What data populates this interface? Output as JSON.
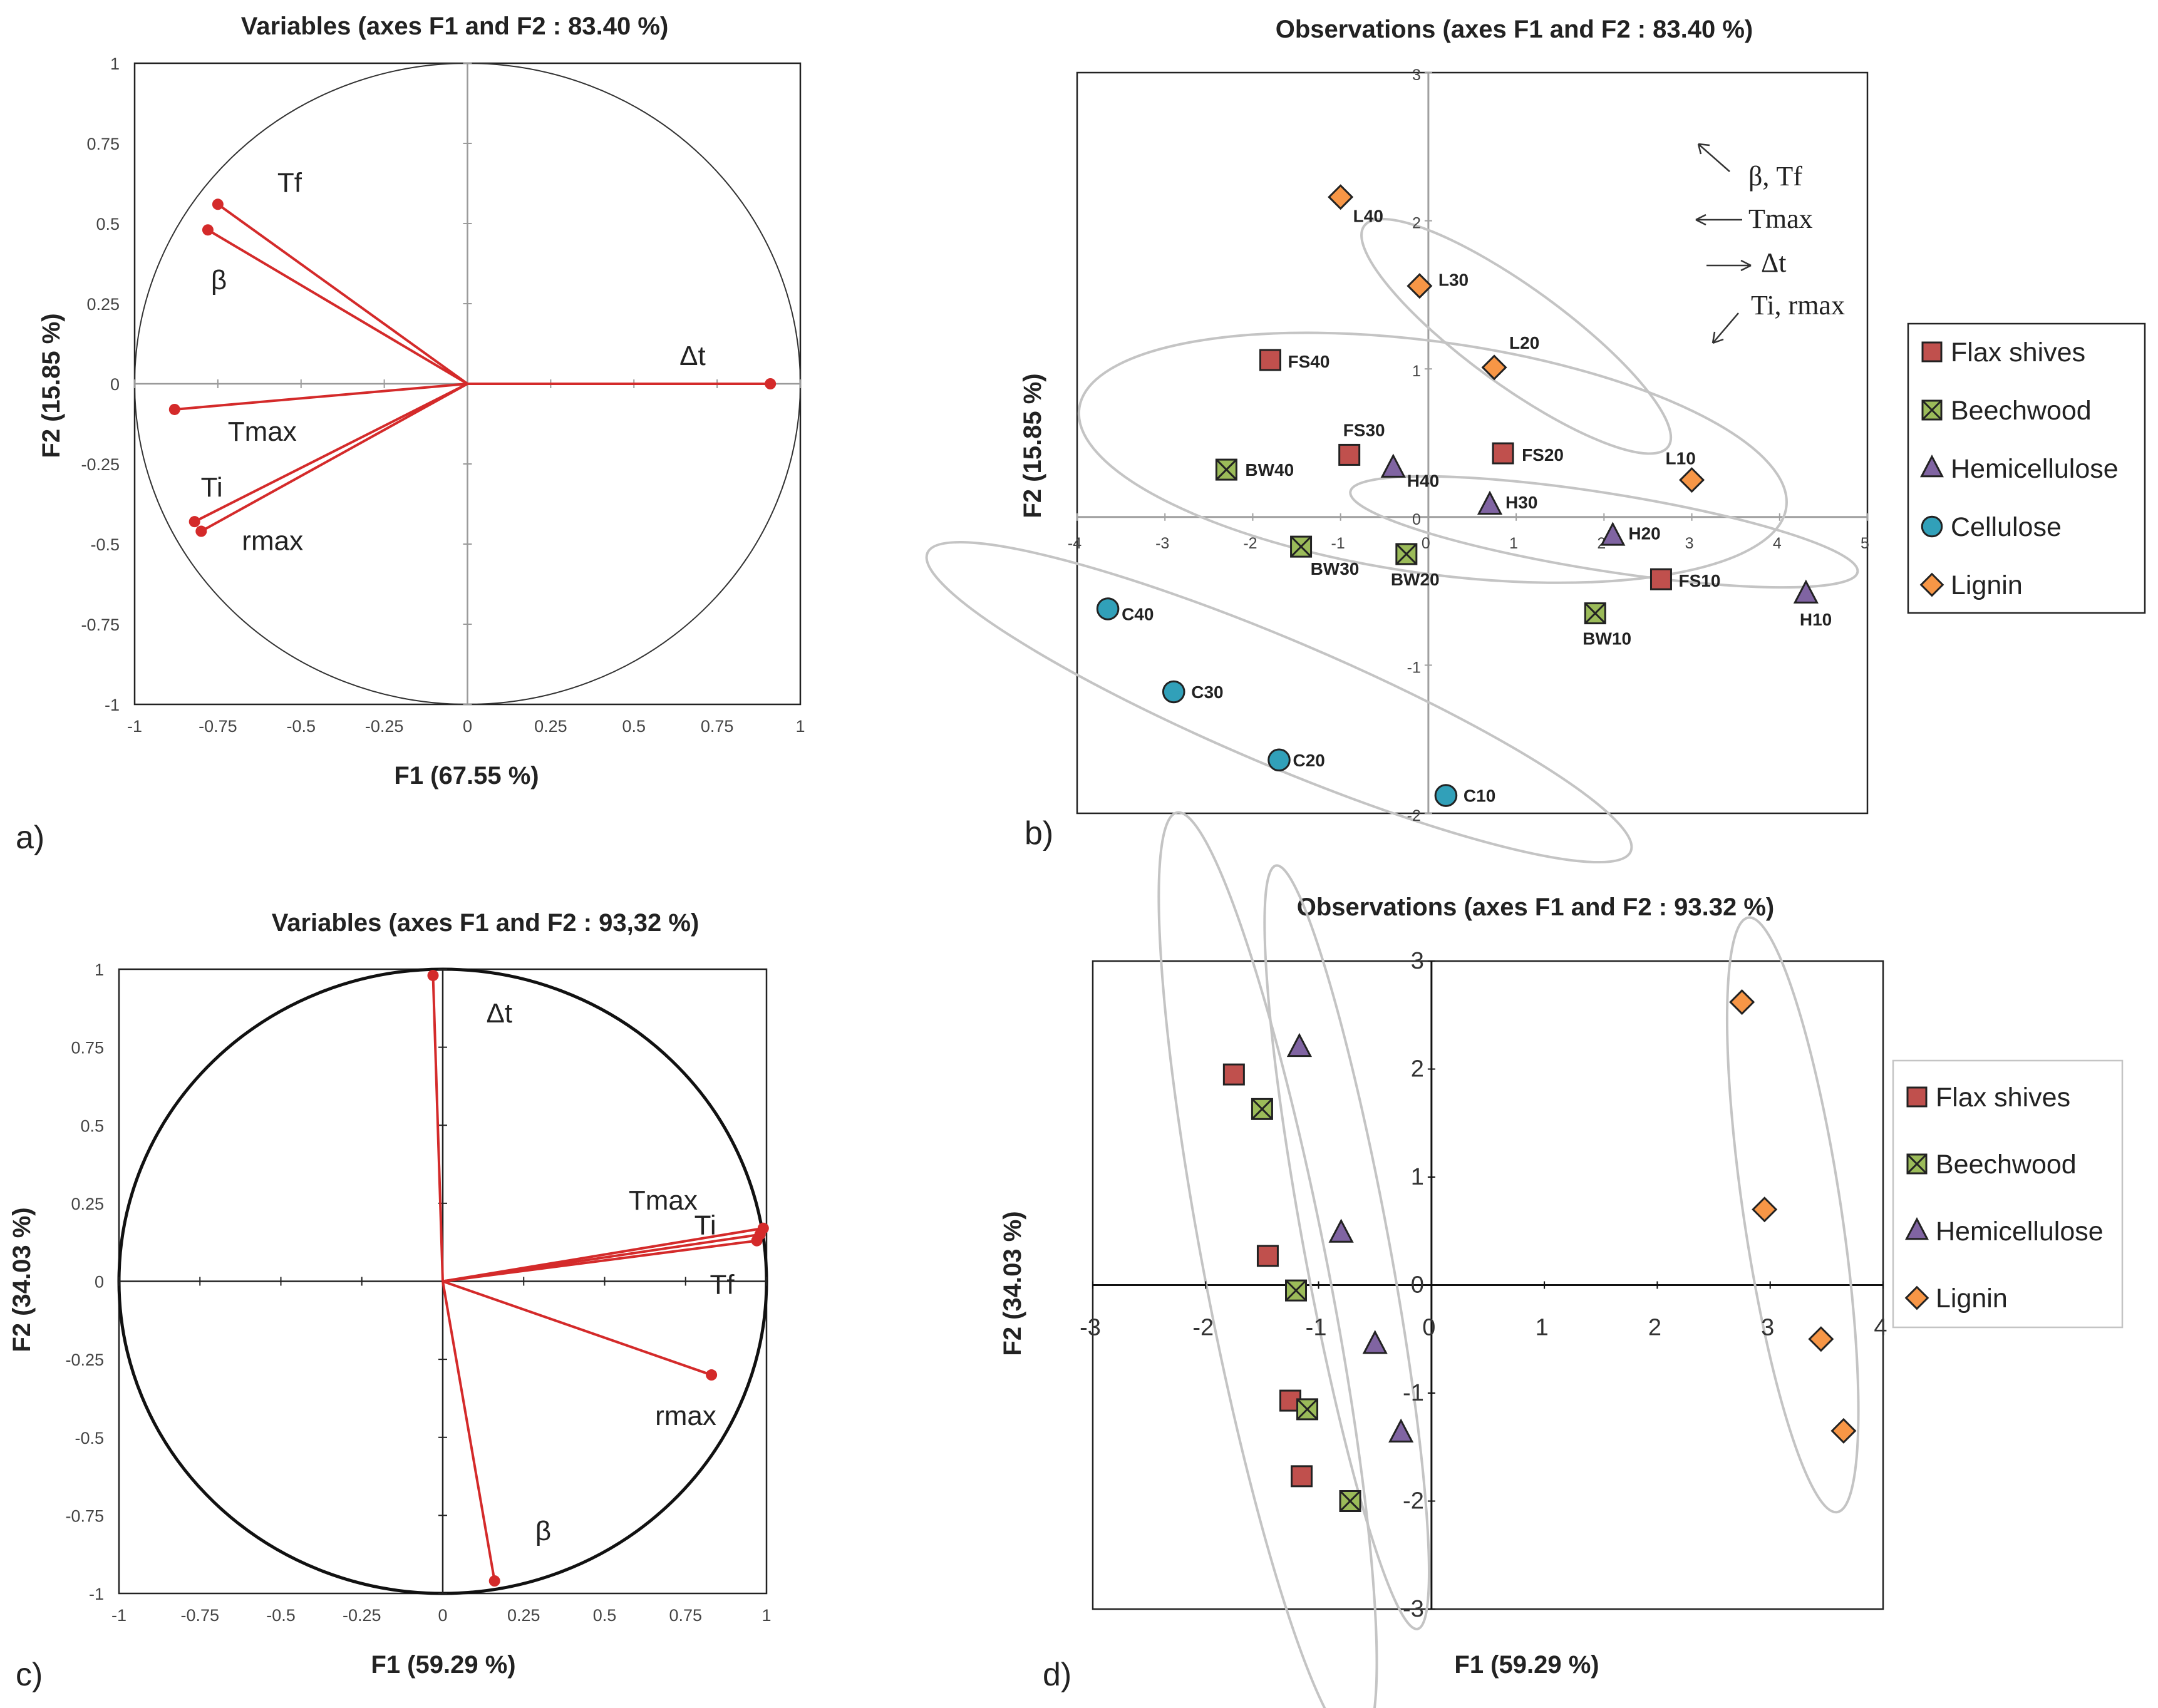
{
  "chart_data": [
    {
      "type": "scatter",
      "panel": "a)",
      "title": "Variables (axes F1  and  F2 : 83.40 %)",
      "xlabel": "F1 (67.55 %)",
      "ylabel": "F2 (15.85 %)",
      "xlim": [
        -1,
        1
      ],
      "ylim": [
        -1,
        1
      ],
      "xticks": [
        "-1",
        "-0.75",
        "-0.5",
        "-0.25",
        "0",
        "0.25",
        "0.5",
        "0.75",
        "1"
      ],
      "yticks": [
        "-1",
        "-0.75",
        "-0.5",
        "-0.25",
        "0",
        "0.25",
        "0.5",
        "0.75",
        "1"
      ],
      "grid": false,
      "unit_circle": true,
      "vectors": [
        {
          "name": "Tf",
          "x": -0.75,
          "y": 0.56
        },
        {
          "name": "β",
          "x": -0.78,
          "y": 0.48
        },
        {
          "name": "Δt",
          "x": 0.91,
          "y": 0.0
        },
        {
          "name": "Tmax",
          "x": -0.88,
          "y": -0.08
        },
        {
          "name": "Ti",
          "x": -0.82,
          "y": -0.43
        },
        {
          "name": "rmax",
          "x": -0.8,
          "y": -0.46
        }
      ]
    },
    {
      "type": "scatter",
      "panel": "b)",
      "title": "Observations (axes F1 and F2 : 83.40 %)",
      "xlabel": "",
      "ylabel": "F2 (15.85 %)",
      "xlim": [
        -4,
        5
      ],
      "ylim": [
        -2,
        3
      ],
      "xticks": [
        "-4",
        "-3",
        "-2",
        "-1",
        "0",
        "1",
        "2",
        "3",
        "4",
        "5"
      ],
      "yticks": [
        "-2",
        "-1",
        "0",
        "1",
        "2",
        "3"
      ],
      "annotations": [
        "β, Tf",
        "Tmax",
        "Δt",
        "Ti, rmax"
      ],
      "series": [
        {
          "name": "Flax shives",
          "color": "#c0504d",
          "marker": "square",
          "points": [
            {
              "label": "FS40",
              "x": -1.8,
              "y": 1.06
            },
            {
              "label": "FS30",
              "x": -0.9,
              "y": 0.42
            },
            {
              "label": "FS20",
              "x": 0.85,
              "y": 0.43
            },
            {
              "label": "FS10",
              "x": 2.65,
              "y": -0.42
            }
          ]
        },
        {
          "name": "Beechwood",
          "color": "#9bbb59",
          "marker": "xbox",
          "points": [
            {
              "label": "BW40",
              "x": -2.3,
              "y": 0.32
            },
            {
              "label": "BW30",
              "x": -1.45,
              "y": -0.2
            },
            {
              "label": "BW20",
              "x": -0.25,
              "y": -0.25
            },
            {
              "label": "BW10",
              "x": 1.9,
              "y": -0.65
            }
          ]
        },
        {
          "name": "Hemicellulose",
          "color": "#8064a2",
          "marker": "triangle",
          "points": [
            {
              "label": "H40",
              "x": -0.4,
              "y": 0.33
            },
            {
              "label": "H30",
              "x": 0.7,
              "y": 0.08
            },
            {
              "label": "H20",
              "x": 2.1,
              "y": -0.13
            },
            {
              "label": "H10",
              "x": 4.3,
              "y": -0.52
            }
          ]
        },
        {
          "name": "Cellulose",
          "color": "#31a0b9",
          "marker": "circle",
          "points": [
            {
              "label": "C40",
              "x": -3.65,
              "y": -0.62
            },
            {
              "label": "C30",
              "x": -2.9,
              "y": -1.18
            },
            {
              "label": "C20",
              "x": -1.7,
              "y": -1.64
            },
            {
              "label": "C10",
              "x": 0.2,
              "y": -1.88
            }
          ]
        },
        {
          "name": "Lignin",
          "color": "#f79646",
          "marker": "diamond",
          "points": [
            {
              "label": "L40",
              "x": -1.0,
              "y": 2.16
            },
            {
              "label": "L30",
              "x": -0.1,
              "y": 1.56
            },
            {
              "label": "L20",
              "x": 0.75,
              "y": 1.01
            },
            {
              "label": "L10",
              "x": 3.0,
              "y": 0.25
            }
          ]
        }
      ]
    },
    {
      "type": "scatter",
      "panel": "c)",
      "title": "Variables (axes F1 and F2 : 93,32 %)",
      "xlabel": "F1 (59.29 %)",
      "ylabel": "F2 (34.03 %)",
      "xlim": [
        -1,
        1
      ],
      "ylim": [
        -1,
        1
      ],
      "xticks": [
        "-1",
        "-0.75",
        "-0.5",
        "-0.25",
        "0",
        "0.25",
        "0.5",
        "0.75",
        "1"
      ],
      "yticks": [
        "-1",
        "-0.75",
        "-0.5",
        "-0.25",
        "0",
        "0.25",
        "0.5",
        "0.75",
        "1"
      ],
      "grid": false,
      "unit_circle": true,
      "vectors": [
        {
          "name": "Δt",
          "x": -0.03,
          "y": 0.98
        },
        {
          "name": "Tmax",
          "x": 0.99,
          "y": 0.17
        },
        {
          "name": "Ti",
          "x": 0.98,
          "y": 0.15
        },
        {
          "name": "Tf",
          "x": 0.97,
          "y": 0.13
        },
        {
          "name": "rmax",
          "x": 0.83,
          "y": -0.3
        },
        {
          "name": "β",
          "x": 0.16,
          "y": -0.96
        }
      ]
    },
    {
      "type": "scatter",
      "panel": "d)",
      "title": "Observations (axes F1  and  F2 : 93.32 %)",
      "xlabel": "F1 (59.29 %)",
      "ylabel": "F2 (34.03 %)",
      "xlim": [
        -3,
        4
      ],
      "ylim": [
        -3,
        3
      ],
      "xticks": [
        "-3",
        "-2",
        "-1",
        "0",
        "1",
        "2",
        "3",
        "4"
      ],
      "yticks": [
        "-3",
        "-2",
        "-1",
        "0",
        "1",
        "2",
        "3"
      ],
      "series": [
        {
          "name": "Flax shives",
          "color": "#c0504d",
          "marker": "square",
          "points": [
            {
              "x": -1.75,
              "y": 1.95
            },
            {
              "x": -1.45,
              "y": 0.27
            },
            {
              "x": -1.25,
              "y": -1.07
            },
            {
              "x": -1.15,
              "y": -1.77
            }
          ]
        },
        {
          "name": "Beechwood",
          "color": "#9bbb59",
          "marker": "xbox",
          "points": [
            {
              "x": -1.5,
              "y": 1.63
            },
            {
              "x": -1.2,
              "y": -0.05
            },
            {
              "x": -1.1,
              "y": -1.15
            },
            {
              "x": -0.72,
              "y": -2.0
            }
          ]
        },
        {
          "name": "Hemicellulose",
          "color": "#8064a2",
          "marker": "triangle",
          "points": [
            {
              "x": -1.17,
              "y": 2.2
            },
            {
              "x": -0.8,
              "y": 0.48
            },
            {
              "x": -0.5,
              "y": -0.55
            },
            {
              "x": -0.27,
              "y": -1.37
            }
          ]
        },
        {
          "name": "Lignin",
          "color": "#f79646",
          "marker": "diamond",
          "points": [
            {
              "x": 2.75,
              "y": 2.62
            },
            {
              "x": 2.95,
              "y": 0.7
            },
            {
              "x": 3.45,
              "y": -0.5
            },
            {
              "x": 3.65,
              "y": -1.35
            }
          ]
        }
      ]
    }
  ]
}
